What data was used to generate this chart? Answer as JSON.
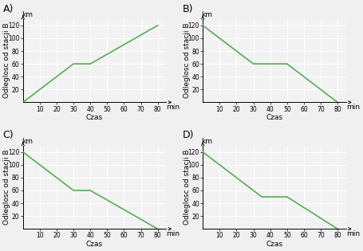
{
  "subplots": [
    {
      "label": "A)",
      "line_x": [
        0,
        30,
        40,
        80
      ],
      "line_y": [
        0,
        60,
        60,
        120
      ],
      "color": "#5aaa5a"
    },
    {
      "label": "B)",
      "line_x": [
        0,
        30,
        50,
        80
      ],
      "line_y": [
        120,
        60,
        60,
        0
      ],
      "color": "#5aaa5a"
    },
    {
      "label": "C)",
      "line_x": [
        0,
        30,
        40,
        80
      ],
      "line_y": [
        120,
        60,
        60,
        0
      ],
      "color": "#5aaa5a"
    },
    {
      "label": "D)",
      "line_x": [
        0,
        35,
        50,
        80
      ],
      "line_y": [
        120,
        50,
        50,
        0
      ],
      "color": "#5aaa5a"
    }
  ],
  "xlabel": "Czas",
  "ylabel": "Odleglosc od stacji B",
  "ylabel_unit": "km",
  "xunit": "min",
  "xlim": [
    0,
    85
  ],
  "ylim": [
    0,
    130
  ],
  "xticks": [
    10,
    20,
    30,
    40,
    50,
    60,
    70,
    80
  ],
  "yticks": [
    20,
    40,
    60,
    80,
    100,
    120
  ],
  "bg_color": "#f2f2f2",
  "grid_color": "#ffffff",
  "label_fontsize": 6.5,
  "tick_fontsize": 5.5,
  "line_width": 1.2,
  "fig_bg": "#f0f0f0"
}
